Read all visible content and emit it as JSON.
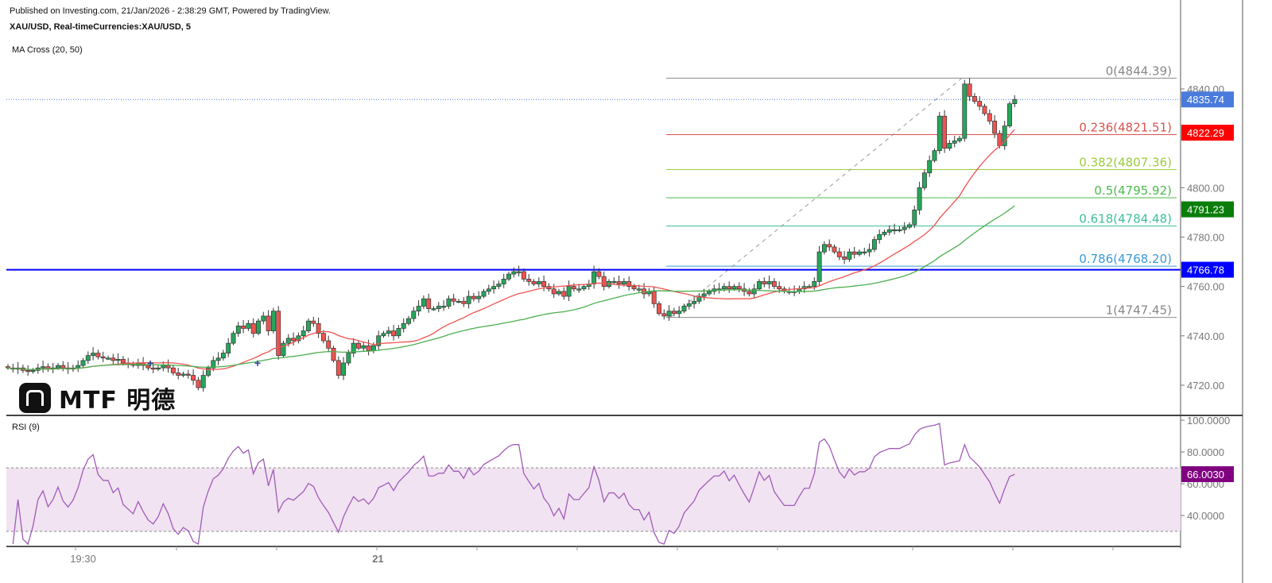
{
  "header": {
    "published": "Published on Investing.com, 21/Jan/2026 - 2:38:29 GMT, Powered by TradingView.",
    "symbol": "XAU/USD, Real-timeCurrencies:XAU/USD, 5",
    "indicator": "MA Cross (20, 50)",
    "rsi_label": "RSI (9)"
  },
  "logo": {
    "text": "MTF 明德"
  },
  "colors": {
    "up": "#26a65b",
    "down": "#ef5350",
    "ma20": "#ef5350",
    "ma50": "#4caf50",
    "rsi": "#a15bb8",
    "rsi_band": "#f1e3f1",
    "hline": "#0000ff",
    "last_price": "#4a7bdc"
  },
  "chart_data": [
    {
      "type": "candlestick",
      "title": "XAU/USD, 5",
      "ylim": [
        4705,
        4860
      ],
      "yticks": [
        "4720.00",
        "4740.00",
        "4760.00",
        "4780.00",
        "4800.00",
        "4840.00"
      ],
      "ytick_values": [
        4720,
        4740,
        4760,
        4780,
        4800,
        4840
      ],
      "xticks": [
        {
          "index": 14,
          "label": "19:30"
        },
        {
          "index": 74,
          "label": "21"
        }
      ],
      "grid": false,
      "closes": [
        4727,
        4726.5,
        4727,
        4726,
        4725.5,
        4726,
        4727,
        4727.5,
        4726.5,
        4727,
        4728,
        4727,
        4726.5,
        4727,
        4728,
        4730,
        4732,
        4733,
        4731.5,
        4731,
        4731,
        4730,
        4730.5,
        4729,
        4728.5,
        4728,
        4729,
        4728,
        4727,
        4726.5,
        4727,
        4728,
        4727,
        4725,
        4724,
        4724.5,
        4724,
        4722,
        4719,
        4724,
        4727,
        4730,
        4731,
        4733,
        4737,
        4741,
        4744,
        4743,
        4745,
        4741,
        4746,
        4748,
        4742,
        4750,
        4732,
        4737,
        4739,
        4738,
        4740,
        4742,
        4746,
        4745,
        4741,
        4738,
        4735,
        4730,
        4724,
        4729,
        4733,
        4737,
        4735,
        4736,
        4734,
        4736,
        4740,
        4741,
        4742,
        4740,
        4743,
        4745,
        4747,
        4750,
        4752,
        4755,
        4751,
        4751,
        4752,
        4752,
        4755,
        4754,
        4754,
        4753,
        4756,
        4755,
        4756,
        4758,
        4759,
        4760,
        4761,
        4763,
        4765,
        4766,
        4766,
        4763,
        4762,
        4761,
        4762,
        4760,
        4759,
        4757,
        4758,
        4756,
        4760,
        4759,
        4759,
        4760,
        4761,
        4766,
        4764,
        4760,
        4762,
        4762,
        4761,
        4762,
        4760,
        4759,
        4759,
        4757,
        4758,
        4753,
        4749,
        4748,
        4750,
        4749,
        4750,
        4752,
        4753,
        4754,
        4756,
        4757,
        4758,
        4759,
        4759,
        4760,
        4759,
        4760,
        4759,
        4758,
        4757,
        4759,
        4762,
        4761,
        4762,
        4760,
        4759,
        4758,
        4758,
        4758,
        4759,
        4760,
        4760,
        4762,
        4774,
        4777,
        4776,
        4774,
        4772,
        4771,
        4774,
        4773,
        4774,
        4774,
        4775,
        4779,
        4781,
        4782,
        4783,
        4783,
        4783,
        4784,
        4785,
        4791,
        4800,
        4806,
        4811,
        4815,
        4829,
        4816,
        4818,
        4819,
        4820,
        4842,
        4837,
        4835,
        4833,
        4830,
        4827,
        4822,
        4817,
        4825,
        4834,
        4835.74
      ],
      "moving_averages": [
        {
          "name": "MA 20",
          "period": 20,
          "last": "4822.29"
        },
        {
          "name": "MA 50",
          "period": 50,
          "last": "4791.23"
        }
      ],
      "horizontal_line": {
        "value": 4766.78,
        "label": "4766.78"
      },
      "last_price": {
        "value": 4835.74,
        "label": "4835.74"
      },
      "fibonacci": {
        "levels": [
          {
            "label": "0(4844.39)",
            "value": 4844.39,
            "color": "#888888"
          },
          {
            "label": "0.236(4821.51)",
            "value": 4821.51,
            "color": "#d9534f"
          },
          {
            "label": "0.382(4807.36)",
            "value": 4807.36,
            "color": "#9ccc3c"
          },
          {
            "label": "0.5(4795.92)",
            "value": 4795.92,
            "color": "#4cbb4c"
          },
          {
            "label": "0.618(4784.48)",
            "value": 4784.48,
            "color": "#3cbf9c"
          },
          {
            "label": "0.786(4768.20)",
            "value": 4768.2,
            "color": "#3c9ad6"
          },
          {
            "label": "1(4747.45)",
            "value": 4747.45,
            "color": "#888888"
          }
        ]
      }
    },
    {
      "type": "line",
      "title": "RSI (9)",
      "period": 9,
      "ylim": [
        20,
        105
      ],
      "yticks": [
        "100.0000",
        "80.0000",
        "60.0000",
        "40.0000"
      ],
      "ytick_values": [
        100,
        80,
        60,
        40
      ],
      "bands": [
        30,
        70
      ],
      "last": "66.0030"
    }
  ]
}
